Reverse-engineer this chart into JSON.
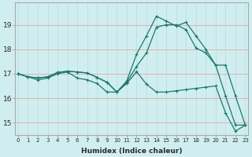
{
  "xlabel": "Humidex (Indice chaleur)",
  "ylabel": "",
  "background_color": "#d0eef0",
  "grid_color": "#c0e0e4",
  "line_color": "#1a7a6a",
  "x": [
    0,
    1,
    2,
    3,
    4,
    5,
    6,
    7,
    8,
    9,
    10,
    11,
    12,
    13,
    14,
    15,
    16,
    17,
    18,
    19,
    20,
    21,
    22,
    23
  ],
  "line1": [
    17.0,
    16.87,
    16.83,
    16.87,
    17.05,
    17.1,
    17.07,
    17.03,
    16.85,
    16.65,
    16.25,
    16.7,
    17.8,
    18.55,
    19.35,
    19.15,
    18.95,
    19.1,
    18.55,
    18.0,
    17.35,
    17.35,
    16.1,
    14.9
  ],
  "line2": [
    17.0,
    16.87,
    16.83,
    16.87,
    17.05,
    17.1,
    17.07,
    17.03,
    16.85,
    16.65,
    16.25,
    16.65,
    17.3,
    17.85,
    18.9,
    19.0,
    19.0,
    18.8,
    18.05,
    17.85,
    17.35,
    16.1,
    14.9,
    14.9
  ],
  "line3": [
    17.0,
    16.87,
    16.75,
    16.82,
    17.0,
    17.07,
    16.82,
    16.75,
    16.6,
    16.25,
    16.25,
    16.6,
    17.08,
    16.57,
    16.25,
    16.25,
    16.3,
    16.35,
    16.4,
    16.45,
    16.5,
    15.4,
    14.65,
    14.9
  ],
  "ylim": [
    14.5,
    19.9
  ],
  "yticks": [
    15,
    16,
    17,
    18,
    19
  ],
  "xticks": [
    0,
    1,
    2,
    3,
    4,
    5,
    6,
    7,
    8,
    9,
    10,
    11,
    12,
    13,
    14,
    15,
    16,
    17,
    18,
    19,
    20,
    21,
    22,
    23
  ]
}
